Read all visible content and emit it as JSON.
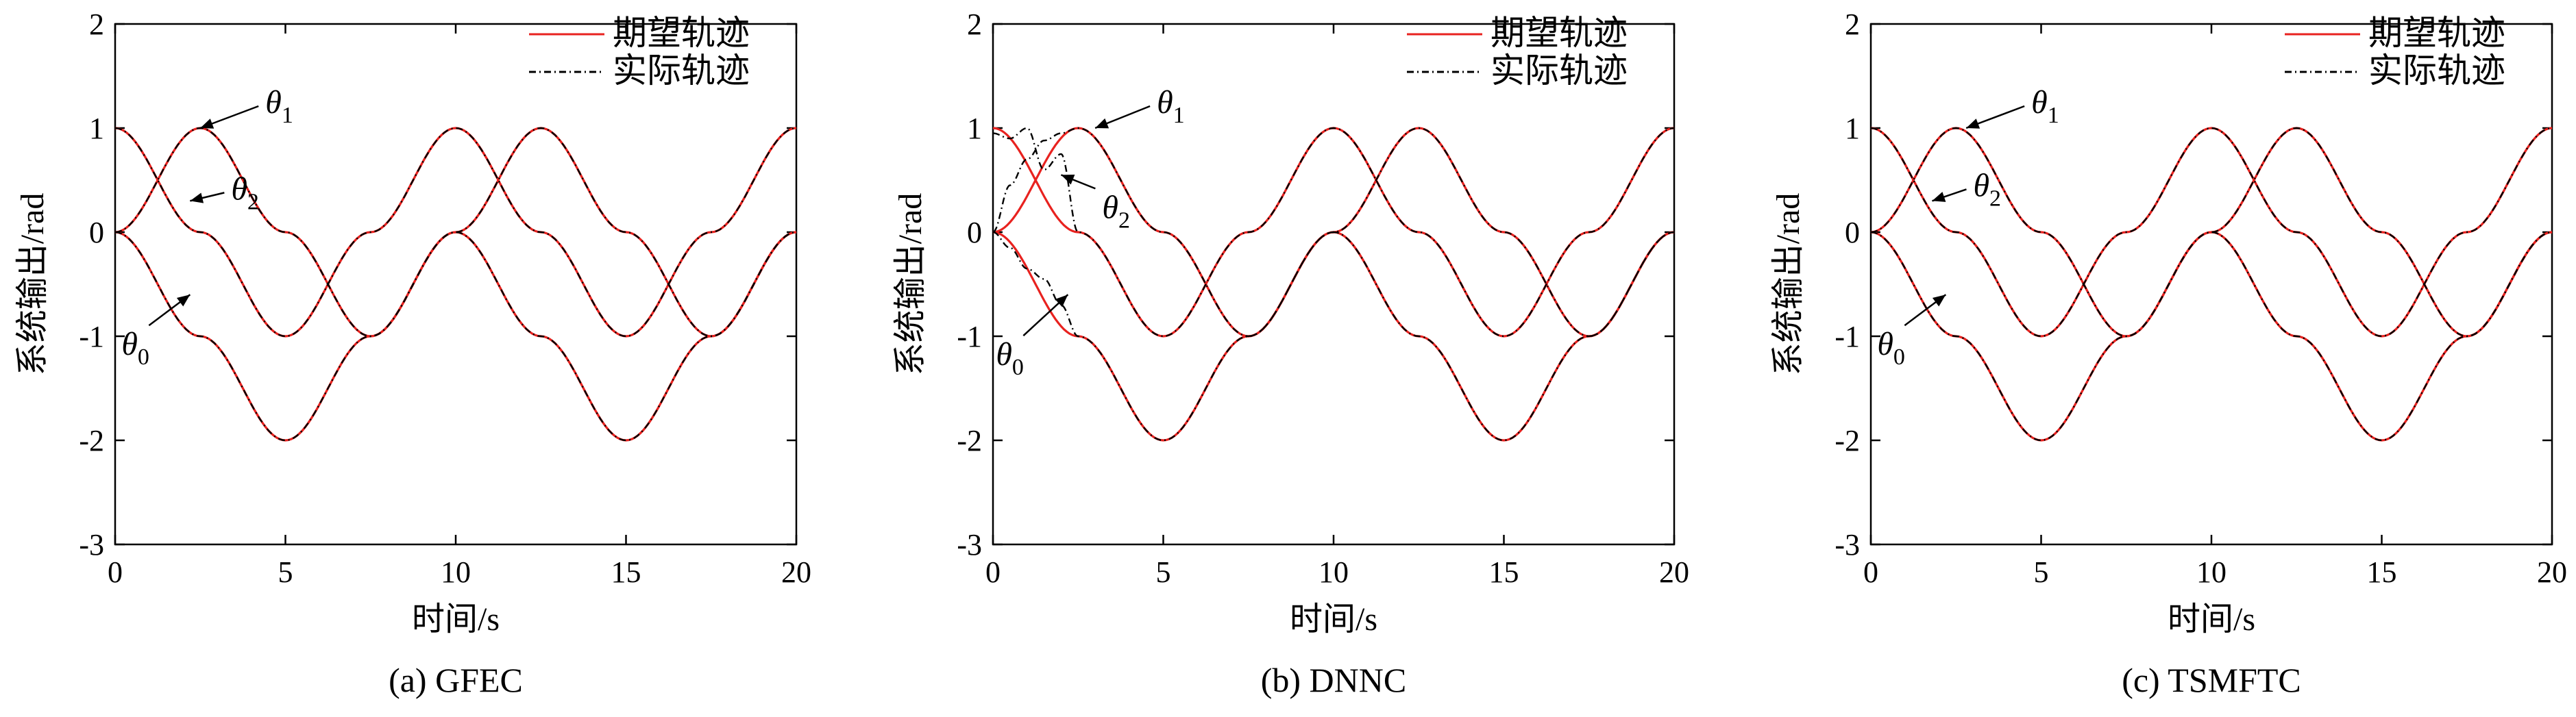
{
  "figure": {
    "panels": [
      {
        "caption": "(a) GFEC",
        "ylabel": "系统输出/rad",
        "xlabel": "时间/s",
        "legend": [
          "期望轨迹",
          "实际轨迹"
        ],
        "annotations": [
          {
            "symbol": "θ",
            "sub": "1",
            "target": [
              2.5,
              1.0
            ]
          },
          {
            "symbol": "θ",
            "sub": "2",
            "target": [
              2.2,
              0.3
            ]
          },
          {
            "symbol": "θ",
            "sub": "0",
            "target": [
              2.2,
              -0.6
            ]
          }
        ]
      },
      {
        "caption": "(b) DNNC",
        "ylabel": "系统输出/rad",
        "xlabel": "时间/s",
        "legend": [
          "期望轨迹",
          "实际轨迹"
        ],
        "annotations": [
          {
            "symbol": "θ",
            "sub": "1",
            "target": [
              3.0,
              1.0
            ]
          },
          {
            "symbol": "θ",
            "sub": "2",
            "target": [
              2.0,
              0.55
            ]
          },
          {
            "symbol": "θ",
            "sub": "0",
            "target": [
              2.2,
              -0.6
            ]
          }
        ]
      },
      {
        "caption": "(c) TSMFTC",
        "ylabel": "系统输出/rad",
        "xlabel": "时间/s",
        "legend": [
          "期望轨迹",
          "实际轨迹"
        ],
        "annotations": [
          {
            "symbol": "θ",
            "sub": "1",
            "target": [
              2.8,
              1.0
            ]
          },
          {
            "symbol": "θ",
            "sub": "2",
            "target": [
              1.8,
              0.3
            ]
          },
          {
            "symbol": "θ",
            "sub": "0",
            "target": [
              2.2,
              -0.6
            ]
          }
        ]
      }
    ]
  },
  "chart_data": [
    {
      "type": "line",
      "caption": "(a) GFEC",
      "xlabel": "时间/s",
      "ylabel": "系统输出/rad",
      "xlim": [
        0,
        20
      ],
      "ylim": [
        -3,
        2
      ],
      "xticks": [
        0,
        5,
        10,
        15,
        20
      ],
      "yticks": [
        -3,
        -2,
        -1,
        0,
        1,
        2
      ],
      "legend_position": "top-right",
      "grid": false,
      "series": [
        {
          "name": "期望轨迹",
          "color": "#e8221f",
          "style": "solid",
          "curves": {
            "theta0": {
              "x": [
                0,
                2.5,
                5,
                7.5,
                10,
                12.5,
                15,
                17.5,
                20
              ],
              "y": [
                0,
                -1,
                -2,
                -1,
                0,
                -1,
                -2,
                -1,
                0
              ]
            },
            "theta1": {
              "x": [
                0,
                2.5,
                5,
                7.5,
                10,
                12.5,
                15,
                17.5,
                20
              ],
              "y": [
                0,
                1,
                0,
                -1,
                0,
                1,
                0,
                -1,
                0
              ]
            },
            "theta2": {
              "x": [
                0,
                2.5,
                5,
                7.5,
                10,
                12.5,
                15,
                17.5,
                20
              ],
              "y": [
                1,
                0,
                -1,
                0,
                1,
                0,
                -1,
                0,
                1
              ]
            }
          }
        },
        {
          "name": "实际轨迹",
          "color": "#000000",
          "style": "dashdot",
          "curves": {
            "theta0": {
              "x": [
                0,
                2.5,
                5,
                7.5,
                10,
                12.5,
                15,
                17.5,
                20
              ],
              "y": [
                0,
                -1,
                -2,
                -1,
                0,
                -1,
                -2,
                -1,
                0
              ]
            },
            "theta1": {
              "x": [
                0,
                2.5,
                5,
                7.5,
                10,
                12.5,
                15,
                17.5,
                20
              ],
              "y": [
                0,
                1,
                0,
                -1,
                0,
                1,
                0,
                -1,
                0
              ]
            },
            "theta2": {
              "x": [
                0,
                2.5,
                5,
                7.5,
                10,
                12.5,
                15,
                17.5,
                20
              ],
              "y": [
                1,
                0,
                -1,
                0,
                1,
                0,
                -1,
                0,
                1
              ]
            }
          }
        }
      ]
    },
    {
      "type": "line",
      "caption": "(b) DNNC",
      "xlabel": "时间/s",
      "ylabel": "系统输出/rad",
      "xlim": [
        0,
        20
      ],
      "ylim": [
        -3,
        2
      ],
      "xticks": [
        0,
        5,
        10,
        15,
        20
      ],
      "yticks": [
        -3,
        -2,
        -1,
        0,
        1,
        2
      ],
      "legend_position": "top-right",
      "grid": false,
      "series": [
        {
          "name": "期望轨迹",
          "color": "#e8221f",
          "style": "solid",
          "curves": {
            "theta0": {
              "x": [
                0,
                2.5,
                5,
                7.5,
                10,
                12.5,
                15,
                17.5,
                20
              ],
              "y": [
                0,
                -1,
                -2,
                -1,
                0,
                -1,
                -2,
                -1,
                0
              ]
            },
            "theta1": {
              "x": [
                0,
                2.5,
                5,
                7.5,
                10,
                12.5,
                15,
                17.5,
                20
              ],
              "y": [
                0,
                1,
                0,
                -1,
                0,
                1,
                0,
                -1,
                0
              ]
            },
            "theta2": {
              "x": [
                0,
                2.5,
                5,
                7.5,
                10,
                12.5,
                15,
                17.5,
                20
              ],
              "y": [
                1,
                0,
                -1,
                0,
                1,
                0,
                -1,
                0,
                1
              ]
            }
          }
        },
        {
          "name": "实际轨迹",
          "color": "#000000",
          "style": "dashdot",
          "curves": {
            "theta0": {
              "x": [
                0,
                0.5,
                1,
                1.5,
                2,
                2.5,
                5,
                7.5,
                10,
                12.5,
                15,
                17.5,
                20
              ],
              "y": [
                0,
                -0.15,
                -0.35,
                -0.45,
                -0.7,
                -1,
                -2,
                -1,
                0,
                -1,
                -2,
                -1,
                0
              ]
            },
            "theta1": {
              "x": [
                0,
                0.5,
                1,
                1.5,
                2,
                2.5,
                5,
                7.5,
                10,
                12.5,
                15,
                17.5,
                20
              ],
              "y": [
                0,
                0.45,
                0.7,
                0.88,
                0.95,
                1,
                0,
                -1,
                0,
                1,
                0,
                -1,
                0
              ]
            },
            "theta2": {
              "x": [
                0,
                0.5,
                1,
                1.5,
                2,
                2.5,
                5,
                7.5,
                10,
                12.5,
                15,
                17.5,
                20
              ],
              "y": [
                0.95,
                0.9,
                1,
                0.6,
                0.75,
                0,
                -1,
                0,
                1,
                0,
                -1,
                0,
                1
              ]
            }
          }
        }
      ]
    },
    {
      "type": "line",
      "caption": "(c) TSMFTC",
      "xlabel": "时间/s",
      "ylabel": "系统输出/rad",
      "xlim": [
        0,
        20
      ],
      "ylim": [
        -3,
        2
      ],
      "xticks": [
        0,
        5,
        10,
        15,
        20
      ],
      "yticks": [
        -3,
        -2,
        -1,
        0,
        1,
        2
      ],
      "legend_position": "top-right",
      "grid": false,
      "series": [
        {
          "name": "期望轨迹",
          "color": "#e8221f",
          "style": "solid",
          "curves": {
            "theta0": {
              "x": [
                0,
                2.5,
                5,
                7.5,
                10,
                12.5,
                15,
                17.5,
                20
              ],
              "y": [
                0,
                -1,
                -2,
                -1,
                0,
                -1,
                -2,
                -1,
                0
              ]
            },
            "theta1": {
              "x": [
                0,
                2.5,
                5,
                7.5,
                10,
                12.5,
                15,
                17.5,
                20
              ],
              "y": [
                0,
                1,
                0,
                -1,
                0,
                1,
                0,
                -1,
                0
              ]
            },
            "theta2": {
              "x": [
                0,
                2.5,
                5,
                7.5,
                10,
                12.5,
                15,
                17.5,
                20
              ],
              "y": [
                1,
                0,
                -1,
                0,
                1,
                0,
                -1,
                0,
                1
              ]
            }
          }
        },
        {
          "name": "实际轨迹",
          "color": "#000000",
          "style": "dashdot",
          "curves": {
            "theta0": {
              "x": [
                0,
                2.5,
                5,
                7.5,
                10,
                12.5,
                15,
                17.5,
                20
              ],
              "y": [
                0,
                -1,
                -2,
                -1,
                0,
                -1,
                -2,
                -1,
                0
              ]
            },
            "theta1": {
              "x": [
                0,
                2.5,
                5,
                7.5,
                10,
                12.5,
                15,
                17.5,
                20
              ],
              "y": [
                0,
                1,
                0,
                -1,
                0,
                1,
                0,
                -1,
                0
              ]
            },
            "theta2": {
              "x": [
                0,
                2.5,
                5,
                7.5,
                10,
                12.5,
                15,
                17.5,
                20
              ],
              "y": [
                1,
                0,
                -1,
                0,
                1,
                0,
                -1,
                0,
                1
              ]
            }
          }
        }
      ]
    }
  ]
}
